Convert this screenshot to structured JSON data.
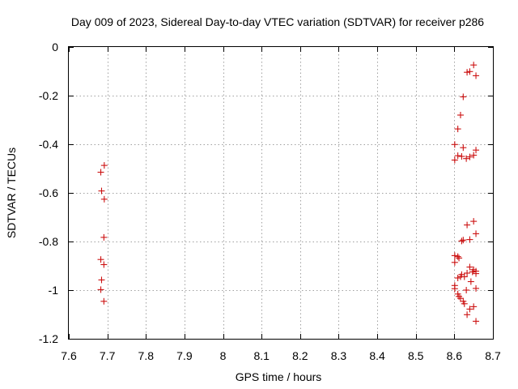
{
  "chart_data": {
    "type": "scatter",
    "title": "Day 009 of 2023, Sidereal Day-to-day VTEC variation (SDTVAR) for receiver p286",
    "xlabel": "GPS time / hours",
    "ylabel": "SDTVAR / TECUs",
    "xlim": [
      7.6,
      8.7
    ],
    "ylim": [
      -1.2,
      0
    ],
    "grid": true,
    "marker": "+",
    "point_color": "#cc1111",
    "x_ticks": [
      "7.6",
      "7.7",
      "7.8",
      "7.9",
      "8",
      "8.1",
      "8.2",
      "8.3",
      "8.4",
      "8.5",
      "8.6",
      "8.7"
    ],
    "y_ticks": [
      "0",
      "-0.2",
      "-0.4",
      "-0.6",
      "-0.8",
      "-1",
      "-1.2"
    ],
    "x_tick_values": [
      7.6,
      7.7,
      7.8,
      7.9,
      8.0,
      8.1,
      8.2,
      8.3,
      8.4,
      8.5,
      8.6,
      8.7
    ],
    "y_tick_values": [
      0,
      -0.2,
      -0.4,
      -0.6,
      -0.8,
      -1.0,
      -1.2
    ],
    "series": [
      {
        "name": "p286",
        "points": [
          [
            7.683,
            -0.515
          ],
          [
            7.692,
            -0.487
          ],
          [
            7.685,
            -0.592
          ],
          [
            7.692,
            -0.626
          ],
          [
            7.691,
            -0.783
          ],
          [
            7.683,
            -0.874
          ],
          [
            7.691,
            -0.895
          ],
          [
            7.685,
            -0.958
          ],
          [
            7.683,
            -0.998
          ],
          [
            7.691,
            -1.046
          ],
          [
            8.65,
            -0.074
          ],
          [
            8.64,
            -0.101
          ],
          [
            8.633,
            -0.104
          ],
          [
            8.656,
            -0.118
          ],
          [
            8.623,
            -0.205
          ],
          [
            8.616,
            -0.28
          ],
          [
            8.609,
            -0.337
          ],
          [
            8.601,
            -0.401
          ],
          [
            8.623,
            -0.414
          ],
          [
            8.656,
            -0.424
          ],
          [
            8.609,
            -0.447
          ],
          [
            8.619,
            -0.45
          ],
          [
            8.64,
            -0.452
          ],
          [
            8.65,
            -0.445
          ],
          [
            8.631,
            -0.459
          ],
          [
            8.601,
            -0.465
          ],
          [
            8.65,
            -0.717
          ],
          [
            8.633,
            -0.732
          ],
          [
            8.656,
            -0.768
          ],
          [
            8.619,
            -0.798
          ],
          [
            8.623,
            -0.794
          ],
          [
            8.64,
            -0.792
          ],
          [
            8.609,
            -0.862
          ],
          [
            8.601,
            -0.858
          ],
          [
            8.601,
            -0.886
          ],
          [
            8.612,
            -0.868
          ],
          [
            8.64,
            -0.905
          ],
          [
            8.65,
            -0.916
          ],
          [
            8.656,
            -0.922
          ],
          [
            8.619,
            -0.936
          ],
          [
            8.626,
            -0.945
          ],
          [
            8.633,
            -0.93
          ],
          [
            8.647,
            -0.925
          ],
          [
            8.656,
            -0.932
          ],
          [
            8.609,
            -0.95
          ],
          [
            8.616,
            -0.945
          ],
          [
            8.643,
            -0.965
          ],
          [
            8.601,
            -0.981
          ],
          [
            8.601,
            -0.994
          ],
          [
            8.656,
            -0.993
          ],
          [
            8.631,
            -1.0
          ],
          [
            8.609,
            -1.016
          ],
          [
            8.612,
            -1.026
          ],
          [
            8.616,
            -1.034
          ],
          [
            8.623,
            -1.046
          ],
          [
            8.626,
            -1.056
          ],
          [
            8.65,
            -1.068
          ],
          [
            8.64,
            -1.078
          ],
          [
            8.633,
            -1.101
          ],
          [
            8.656,
            -1.128
          ]
        ]
      }
    ]
  }
}
